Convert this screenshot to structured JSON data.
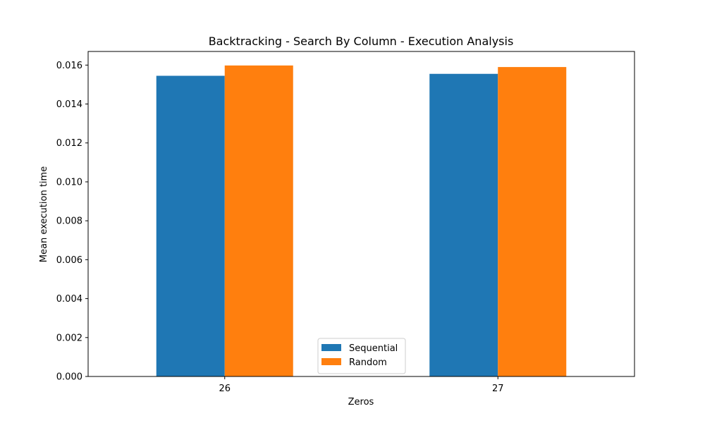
{
  "chart_data": {
    "type": "bar",
    "title": "Backtracking - Search By Column - Execution Analysis",
    "xlabel": "Zeros",
    "ylabel": "Mean execution time",
    "categories": [
      "26",
      "27"
    ],
    "series": [
      {
        "name": "Sequential",
        "color": "#1f77b4",
        "values": [
          0.01545,
          0.01555
        ]
      },
      {
        "name": "Random",
        "color": "#ff7f0e",
        "values": [
          0.01598,
          0.0159
        ]
      }
    ],
    "ylim": [
      0,
      0.0167
    ],
    "yticks": [
      "0.000",
      "0.002",
      "0.004",
      "0.006",
      "0.008",
      "0.010",
      "0.012",
      "0.014",
      "0.016"
    ],
    "legend": "bottom-center",
    "grid": false
  }
}
